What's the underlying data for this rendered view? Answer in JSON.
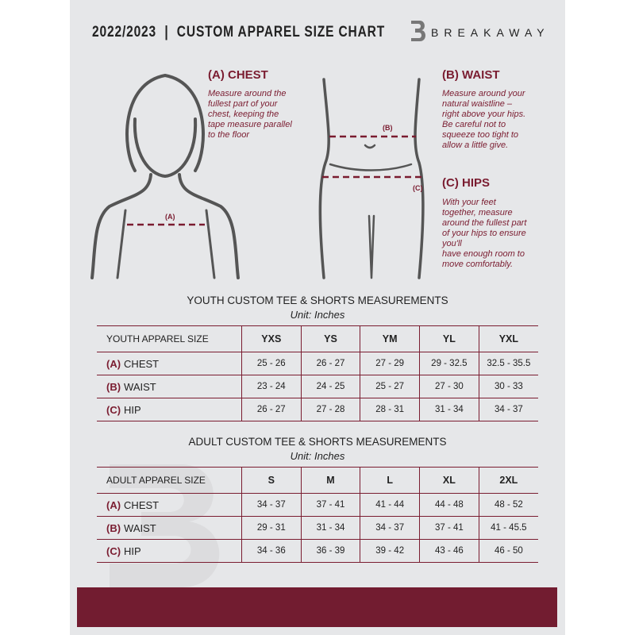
{
  "header": {
    "title": "2022/2023  |  CUSTOM APPAREL SIZE CHART",
    "logo_mark": "B",
    "brand": "BREAKAWAY"
  },
  "guide": {
    "chest": {
      "heading": "(A) CHEST",
      "marker": "(A)",
      "text": "Measure around the\nfullest part of your\nchest, keeping the\ntape measure parallel\nto the floor"
    },
    "waist": {
      "heading": "(B) WAIST",
      "marker": "(B)",
      "text": "Measure around your\nnatural waistline –\nright above your hips.\nBe careful not to\nsqueeze too tight to\nallow a little give."
    },
    "hips": {
      "heading": "(C) HIPS",
      "marker": "(C)",
      "text": "With your feet\ntogether, measure\naround the fullest part\nof your hips to ensure\nyou'll\nhave enough room to\nmove comfortably."
    }
  },
  "youth": {
    "title": "YOUTH CUSTOM TEE & SHORTS MEASUREMENTS",
    "unit": "Unit: Inches",
    "size_label": "YOUTH APPAREL SIZE",
    "sizes": [
      "YXS",
      "YS",
      "YM",
      "YL",
      "YXL"
    ],
    "rows": [
      {
        "key": "(A)",
        "label": "CHEST",
        "values": [
          "25 - 26",
          "26 - 27",
          "27 - 29",
          "29 - 32.5",
          "32.5 - 35.5"
        ]
      },
      {
        "key": "(B)",
        "label": "WAIST",
        "values": [
          "23 - 24",
          "24 - 25",
          "25 - 27",
          "27 - 30",
          "30 - 33"
        ]
      },
      {
        "key": "(C)",
        "label": "HIP",
        "values": [
          "26 - 27",
          "27 - 28",
          "28 - 31",
          "31 - 34",
          "34 - 37"
        ]
      }
    ]
  },
  "adult": {
    "title": "ADULT CUSTOM TEE & SHORTS MEASUREMENTS",
    "unit": "Unit: Inches",
    "size_label": "ADULT APPAREL SIZE",
    "sizes": [
      "S",
      "M",
      "L",
      "XL",
      "2XL"
    ],
    "rows": [
      {
        "key": "(A)",
        "label": "CHEST",
        "values": [
          "34 - 37",
          "37 - 41",
          "41 - 44",
          "44 - 48",
          "48 - 52"
        ]
      },
      {
        "key": "(B)",
        "label": "WAIST",
        "values": [
          "29 - 31",
          "31 - 34",
          "34 - 37",
          "37 - 41",
          "41 - 45.5"
        ]
      },
      {
        "key": "(C)",
        "label": "HIP",
        "values": [
          "34 - 36",
          "36 - 39",
          "39 - 42",
          "43 - 46",
          "46 - 50"
        ]
      }
    ]
  },
  "colors": {
    "accent": "#7a1c30",
    "page": "#e6e7e9",
    "band": "#721c30"
  }
}
